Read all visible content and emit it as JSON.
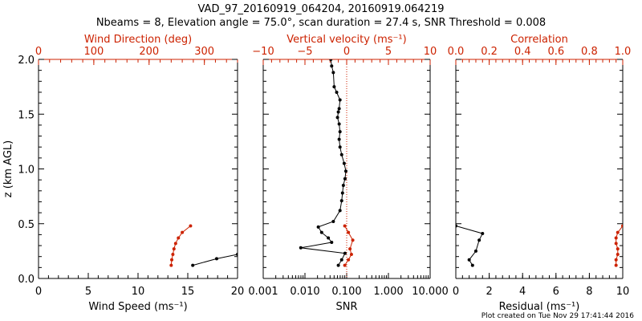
{
  "header": {
    "title": "VAD_97_20160919_064204, 20160919.064219",
    "subtitle": "Nbeams = 8, Elevation angle = 75.0°, scan duration = 27.4 s, SNR Threshold = 0.008"
  },
  "footer": {
    "note": "Plot created on Tue Nov 29 17:41:44 2016"
  },
  "colors": {
    "primary": "#000000",
    "secondary": "#cc2200"
  },
  "chart_data": [
    {
      "type": "line",
      "panel": "wind",
      "ylabel": "z (km AGL)",
      "ylim": [
        0,
        2
      ],
      "yticks": [
        "0.0",
        "0.5",
        "1.0",
        "1.5",
        "2.0"
      ],
      "xlabel": "Wind Speed (ms⁻¹)",
      "xlim": [
        0,
        20
      ],
      "xticks": [
        "0",
        "5",
        "10",
        "15",
        "20"
      ],
      "top_label": "Wind Direction (deg)",
      "top_lim": [
        0,
        360
      ],
      "top_ticks": [
        "0",
        "100",
        "200",
        "300"
      ],
      "series": [
        {
          "axis": "bottom",
          "color": "#000000",
          "x": [
            15.5,
            17.9,
            20.0
          ],
          "y": [
            0.12,
            0.18,
            0.22
          ]
        },
        {
          "axis": "top",
          "color": "#cc2200",
          "x": [
            240,
            241,
            243,
            245,
            248,
            253,
            260,
            275
          ],
          "y": [
            0.12,
            0.17,
            0.22,
            0.27,
            0.32,
            0.37,
            0.42,
            0.48
          ]
        }
      ]
    },
    {
      "type": "line",
      "panel": "snr",
      "xlabel": "SNR",
      "xscale": "log",
      "xlim": [
        0.001,
        10
      ],
      "xticks": [
        "0.001",
        "0.010",
        "0.100",
        "1.000",
        "10.000"
      ],
      "top_label": "Vertical velocity (ms⁻¹)",
      "top_lim": [
        -10,
        10
      ],
      "top_ticks": [
        "−10",
        "−5",
        "0",
        "5",
        "10"
      ],
      "ylim": [
        0,
        2
      ],
      "vline_top_value": 0,
      "series": [
        {
          "axis": "top",
          "color": "#000000",
          "x": [
            -1.0,
            -0.6,
            -0.2,
            -5.5,
            -1.8,
            -2.2,
            -3.0,
            -3.4,
            -1.6,
            -0.8,
            -0.6,
            -0.5,
            -0.4,
            -0.2,
            -0.1,
            -0.3,
            -0.6,
            -0.8,
            -0.9,
            -0.8,
            -0.9,
            -1.1,
            -1.0,
            -0.9,
            -0.8,
            -1.2,
            -1.5,
            -1.6,
            -1.8,
            -1.9
          ],
          "y": [
            0.12,
            0.17,
            0.23,
            0.28,
            0.33,
            0.37,
            0.42,
            0.47,
            0.52,
            0.62,
            0.71,
            0.78,
            0.85,
            0.91,
            0.98,
            1.05,
            1.13,
            1.2,
            1.27,
            1.34,
            1.41,
            1.47,
            1.52,
            1.55,
            1.63,
            1.7,
            1.75,
            1.88,
            1.94,
            2.0
          ]
        },
        {
          "axis": "bottom",
          "color": "#cc2200",
          "x": [
            0.09,
            0.11,
            0.13,
            0.12,
            0.14,
            0.11,
            0.09
          ],
          "y": [
            0.12,
            0.17,
            0.22,
            0.27,
            0.35,
            0.42,
            0.48
          ]
        }
      ]
    },
    {
      "type": "line",
      "panel": "residual",
      "xlabel": "Residual (ms⁻¹)",
      "xlim": [
        0,
        10
      ],
      "xticks": [
        "0",
        "2",
        "4",
        "6",
        "8",
        "10"
      ],
      "top_label": "Correlation",
      "top_lim": [
        0,
        1
      ],
      "top_ticks": [
        "0.0",
        "0.2",
        "0.4",
        "0.6",
        "0.8",
        "1.0"
      ],
      "ylim": [
        0,
        2
      ],
      "series": [
        {
          "axis": "bottom",
          "color": "#000000",
          "x": [
            1.0,
            0.8,
            1.2,
            1.4,
            1.6,
            0.0
          ],
          "y": [
            0.12,
            0.17,
            0.25,
            0.35,
            0.41,
            0.48
          ]
        },
        {
          "axis": "top",
          "color": "#cc2200",
          "x": [
            0.96,
            0.96,
            0.97,
            0.97,
            0.96,
            0.96,
            0.97,
            1.0
          ],
          "y": [
            0.12,
            0.17,
            0.22,
            0.27,
            0.32,
            0.37,
            0.42,
            0.48
          ]
        }
      ]
    }
  ]
}
